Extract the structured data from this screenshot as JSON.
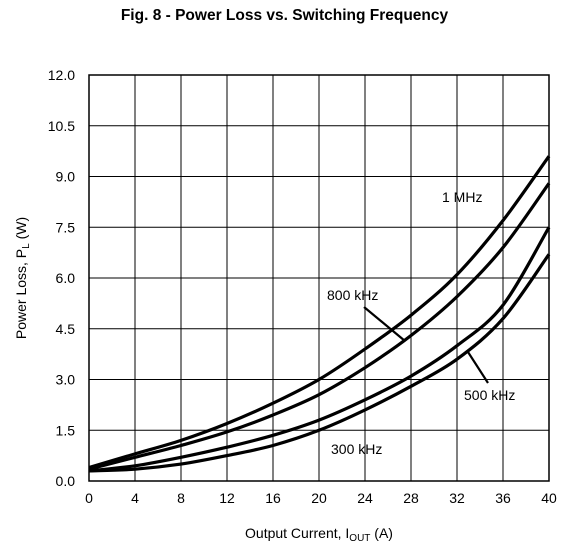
{
  "chart_data": {
    "type": "line",
    "title": "Fig. 8 - Power Loss vs. Switching Frequency",
    "xlabel": {
      "main": "Output Current, I",
      "sub": "OUT",
      "unit": " (A)"
    },
    "ylabel": {
      "main": "Power Loss, P",
      "sub": "L",
      "unit": " (W)"
    },
    "xlim": [
      0,
      40
    ],
    "ylim": [
      0,
      12
    ],
    "x_ticks": [
      "0",
      "4",
      "8",
      "12",
      "16",
      "20",
      "24",
      "28",
      "32",
      "36",
      "40"
    ],
    "y_ticks": [
      "0.0",
      "1.5",
      "3.0",
      "4.5",
      "6.0",
      "7.5",
      "9.0",
      "10.5",
      "12.0"
    ],
    "grid": true,
    "x": [
      0,
      4,
      8,
      12,
      16,
      20,
      24,
      28,
      32,
      36,
      40
    ],
    "series": [
      {
        "name": "1 MHz",
        "values": [
          0.4,
          0.8,
          1.2,
          1.7,
          2.3,
          3.0,
          3.9,
          4.9,
          6.1,
          7.7,
          9.6
        ]
      },
      {
        "name": "800 kHz",
        "values": [
          0.35,
          0.7,
          1.05,
          1.45,
          1.95,
          2.55,
          3.35,
          4.3,
          5.45,
          6.9,
          8.8
        ]
      },
      {
        "name": "500 kHz",
        "values": [
          0.3,
          0.45,
          0.7,
          1.0,
          1.35,
          1.8,
          2.4,
          3.1,
          4.0,
          5.2,
          7.5
        ]
      },
      {
        "name": "300 kHz",
        "values": [
          0.3,
          0.35,
          0.5,
          0.75,
          1.05,
          1.5,
          2.1,
          2.8,
          3.6,
          4.8,
          6.7
        ]
      }
    ]
  }
}
